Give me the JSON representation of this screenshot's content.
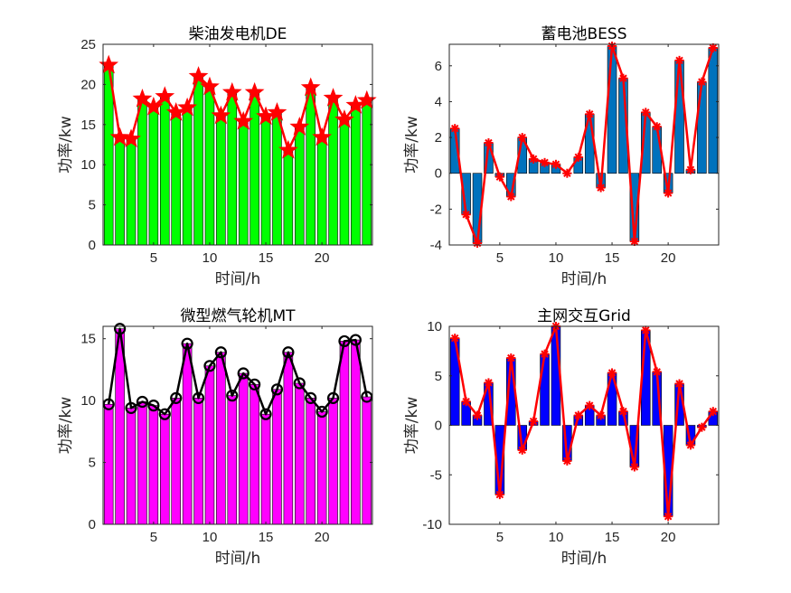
{
  "colors": {
    "axis": "#262626",
    "de_bar": "#00ff00",
    "bess_bar": "#0072bd",
    "mt_bar": "#ff00ff",
    "grid_bar": "#0000ff",
    "red_line": "#ff0000",
    "mt_line": "#000000",
    "bar_edge": "#000000"
  },
  "chart_data": [
    {
      "id": "de",
      "type": "bar",
      "title": "柴油发电机DE",
      "xlabel": "时间/h",
      "ylabel": "功率/kw",
      "xlim": [
        0.5,
        24.5
      ],
      "ylim": [
        0,
        25
      ],
      "xticks": [
        5,
        10,
        15,
        20
      ],
      "yticks": [
        0,
        5,
        10,
        15,
        20,
        25
      ],
      "marker": "star",
      "x": [
        1,
        2,
        3,
        4,
        5,
        6,
        7,
        8,
        9,
        10,
        11,
        12,
        13,
        14,
        15,
        16,
        17,
        18,
        19,
        20,
        21,
        22,
        23,
        24
      ],
      "values": [
        22.4,
        13.4,
        13.2,
        18.2,
        17.2,
        18.5,
        16.5,
        17.1,
        21.0,
        19.7,
        16.1,
        19.0,
        15.4,
        19.0,
        16.0,
        16.5,
        11.8,
        14.7,
        19.6,
        13.4,
        18.3,
        15.6,
        17.4,
        18.0
      ]
    },
    {
      "id": "bess",
      "type": "bar",
      "title": "蓄电池BESS",
      "xlabel": "时间/h",
      "ylabel": "功率/kw",
      "xlim": [
        0.5,
        24.5
      ],
      "ylim": [
        -4,
        7.2
      ],
      "xticks": [
        5,
        10,
        15,
        20
      ],
      "yticks": [
        -4,
        -2,
        0,
        2,
        4,
        6
      ],
      "marker": "asterisk",
      "x": [
        1,
        2,
        3,
        4,
        5,
        6,
        7,
        8,
        9,
        10,
        11,
        12,
        13,
        14,
        15,
        16,
        17,
        18,
        19,
        20,
        21,
        22,
        23,
        24
      ],
      "values": [
        2.5,
        -2.3,
        -3.9,
        1.7,
        -0.2,
        -1.3,
        2.0,
        0.8,
        0.6,
        0.5,
        0.0,
        0.9,
        3.3,
        -0.8,
        7.1,
        5.3,
        -3.8,
        3.4,
        2.6,
        -1.1,
        6.3,
        0.2,
        5.1,
        7.0
      ]
    },
    {
      "id": "mt",
      "type": "bar",
      "title": "微型燃气轮机MT",
      "xlabel": "时间/h",
      "ylabel": "功率/kw",
      "xlim": [
        0.5,
        24.5
      ],
      "ylim": [
        0,
        16
      ],
      "xticks": [
        5,
        10,
        15,
        20
      ],
      "yticks": [
        0,
        5,
        10,
        15
      ],
      "marker": "circle",
      "x": [
        1,
        2,
        3,
        4,
        5,
        6,
        7,
        8,
        9,
        10,
        11,
        12,
        13,
        14,
        15,
        16,
        17,
        18,
        19,
        20,
        21,
        22,
        23,
        24
      ],
      "values": [
        9.7,
        15.8,
        9.4,
        9.9,
        9.6,
        8.9,
        10.2,
        14.6,
        10.2,
        12.8,
        13.9,
        10.4,
        12.2,
        11.3,
        8.9,
        10.9,
        13.9,
        11.4,
        10.2,
        9.1,
        10.2,
        14.8,
        14.9,
        10.3
      ]
    },
    {
      "id": "grid",
      "type": "bar",
      "title": "主网交互Grid",
      "xlabel": "时间/h",
      "ylabel": "功率/kw",
      "xlim": [
        0.5,
        24.5
      ],
      "ylim": [
        -10,
        10
      ],
      "xticks": [
        5,
        10,
        15,
        20
      ],
      "yticks": [
        -10,
        -5,
        0,
        5,
        10
      ],
      "marker": "asterisk",
      "x": [
        1,
        2,
        3,
        4,
        5,
        6,
        7,
        8,
        9,
        10,
        11,
        12,
        13,
        14,
        15,
        16,
        17,
        18,
        19,
        20,
        21,
        22,
        23,
        24
      ],
      "values": [
        8.8,
        2.4,
        1.0,
        4.3,
        -7.0,
        6.8,
        -2.5,
        0.4,
        7.2,
        10.0,
        -3.6,
        1.0,
        2.0,
        1.0,
        5.3,
        1.4,
        -4.2,
        9.6,
        5.4,
        -9.2,
        4.2,
        -2.0,
        -0.2,
        1.4
      ]
    }
  ]
}
